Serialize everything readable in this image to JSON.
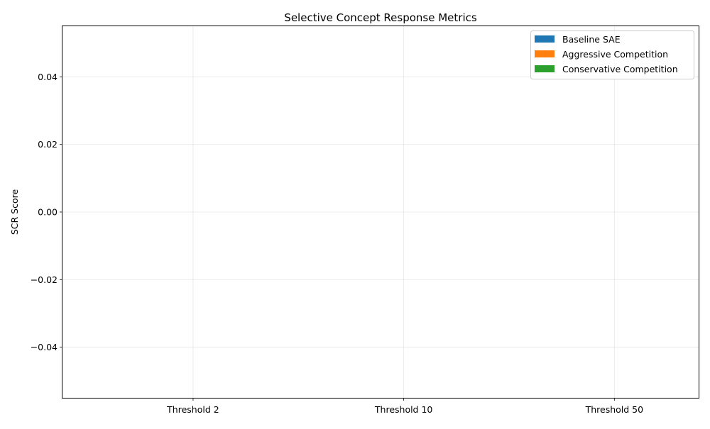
{
  "chart_data": {
    "type": "bar",
    "title": "Selective Concept Response Metrics",
    "xlabel": "",
    "ylabel": "SCR Score",
    "categories": [
      "Threshold 2",
      "Threshold 10",
      "Threshold 50"
    ],
    "series": [
      {
        "name": "Baseline SAE",
        "color": "#1f77b4",
        "values": [
          0,
          0,
          0
        ]
      },
      {
        "name": "Aggressive Competition",
        "color": "#ff7f0e",
        "values": [
          0,
          0,
          0
        ]
      },
      {
        "name": "Conservative Competition",
        "color": "#2ca02c",
        "values": [
          0,
          0,
          0
        ]
      }
    ],
    "ylim": [
      -0.055,
      0.055
    ],
    "yticks": [
      -0.04,
      -0.02,
      0.0,
      0.02,
      0.04
    ],
    "ytick_labels": [
      "−0.04",
      "−0.02",
      "0.00",
      "0.02",
      "0.04"
    ],
    "grid": true,
    "legend_position": "top-right"
  }
}
